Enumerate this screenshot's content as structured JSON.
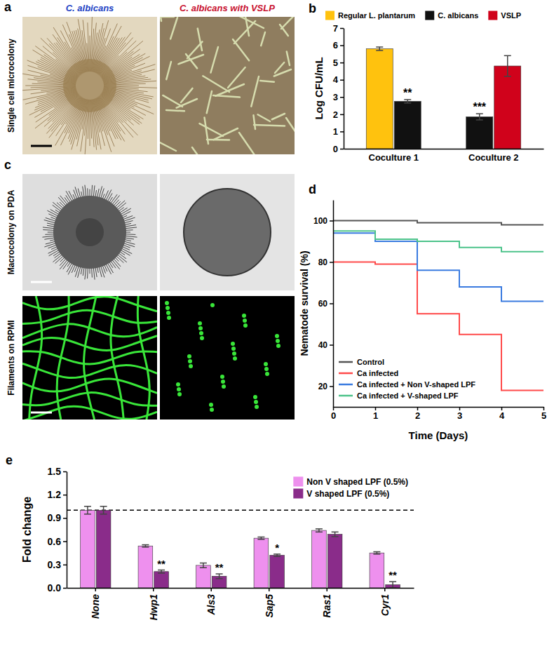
{
  "images": {
    "panel_labels": [
      "a",
      "c"
    ],
    "columns": [
      {
        "title": "C. albicans",
        "color": "#1c3fc4"
      },
      {
        "title": "C. albicans with VSLP",
        "color": "#c8102e"
      }
    ],
    "rows": [
      "Single cell microcolony",
      "Macrocolony on PDA",
      "Filaments on RPMI"
    ]
  },
  "chart_data": [
    {
      "panel_label": "b",
      "type": "bar",
      "categories": [
        "Coculture 1",
        "Coculture 2"
      ],
      "y_label": "Log CFU/mL",
      "ylim": [
        0,
        7
      ],
      "yticks": [
        0,
        1,
        2,
        3,
        4,
        5,
        6,
        7
      ],
      "legend": "top",
      "series": [
        {
          "name": "Regular L. plantarum",
          "color": "#ffc20e",
          "values": [
            5.8,
            null
          ],
          "errors": [
            0.1,
            null
          ]
        },
        {
          "name": "C. albicans",
          "color": "#111111",
          "values": [
            2.75,
            1.85
          ],
          "errors": [
            0.1,
            0.18
          ],
          "significance": [
            "**",
            "***"
          ]
        },
        {
          "name": "VSLP",
          "color": "#d0021b",
          "values": [
            null,
            4.8
          ],
          "errors": [
            null,
            0.6
          ]
        }
      ]
    },
    {
      "panel_label": "d",
      "type": "line",
      "line_style": "step",
      "x": [
        0,
        1,
        2,
        3,
        4,
        5
      ],
      "xlim": [
        0,
        5
      ],
      "xticks": [
        0,
        1,
        2,
        3,
        4,
        5
      ],
      "ylim": [
        10,
        110
      ],
      "yticks": [
        20,
        40,
        60,
        80,
        100
      ],
      "x_label": "Time (Days)",
      "y_label": "Nematode survival (%)",
      "legend": "lower left",
      "series": [
        {
          "name": "Control",
          "color": "#555555",
          "values": [
            100,
            100,
            99,
            99,
            98,
            98
          ]
        },
        {
          "name": "Ca infected",
          "color": "#ff4a4a",
          "values": [
            80,
            79,
            55,
            45,
            18,
            18
          ]
        },
        {
          "name": "Ca infected + Non V-shaped LPF",
          "color": "#3a7be0",
          "values": [
            94,
            90,
            76,
            68,
            61,
            61
          ]
        },
        {
          "name": "Ca infected + V-shaped LPF",
          "color": "#4cc38a",
          "values": [
            95,
            91,
            90,
            87,
            85,
            85
          ]
        }
      ]
    },
    {
      "panel_label": "e",
      "type": "bar",
      "categories": [
        "None",
        "Hwp1",
        "Als3",
        "Sap5",
        "Ras1",
        "Cyr1"
      ],
      "y_label": "Fold change",
      "ylim": [
        0,
        1.5
      ],
      "yticks": [
        {
          "value": 0,
          "label": "0.0"
        },
        {
          "value": 0.3,
          "label": "0.3"
        },
        {
          "value": 0.6,
          "label": "0.6"
        },
        {
          "value": 0.9,
          "label": "0.9"
        },
        {
          "value": 1.2,
          "label": "1.2"
        },
        {
          "value": 1.5,
          "label": "1.5"
        }
      ],
      "reference_line": 1,
      "legend": "upper right",
      "series": [
        {
          "name": "Non V shaped LPF (0.5%)",
          "color": "#ee90ee",
          "values": [
            1.0,
            0.54,
            0.29,
            0.64,
            0.74,
            0.45
          ],
          "errors": [
            0.05,
            0.015,
            0.03,
            0.015,
            0.02,
            0.015
          ]
        },
        {
          "name": "V shaped LPF (0.5%)",
          "color": "#8a2c8a",
          "values": [
            1.0,
            0.21,
            0.15,
            0.42,
            0.69,
            0.04
          ],
          "errors": [
            0.05,
            0.02,
            0.03,
            0.015,
            0.03,
            0.04
          ],
          "significance": [
            null,
            "**",
            "**",
            "*",
            null,
            "**"
          ]
        }
      ]
    }
  ]
}
